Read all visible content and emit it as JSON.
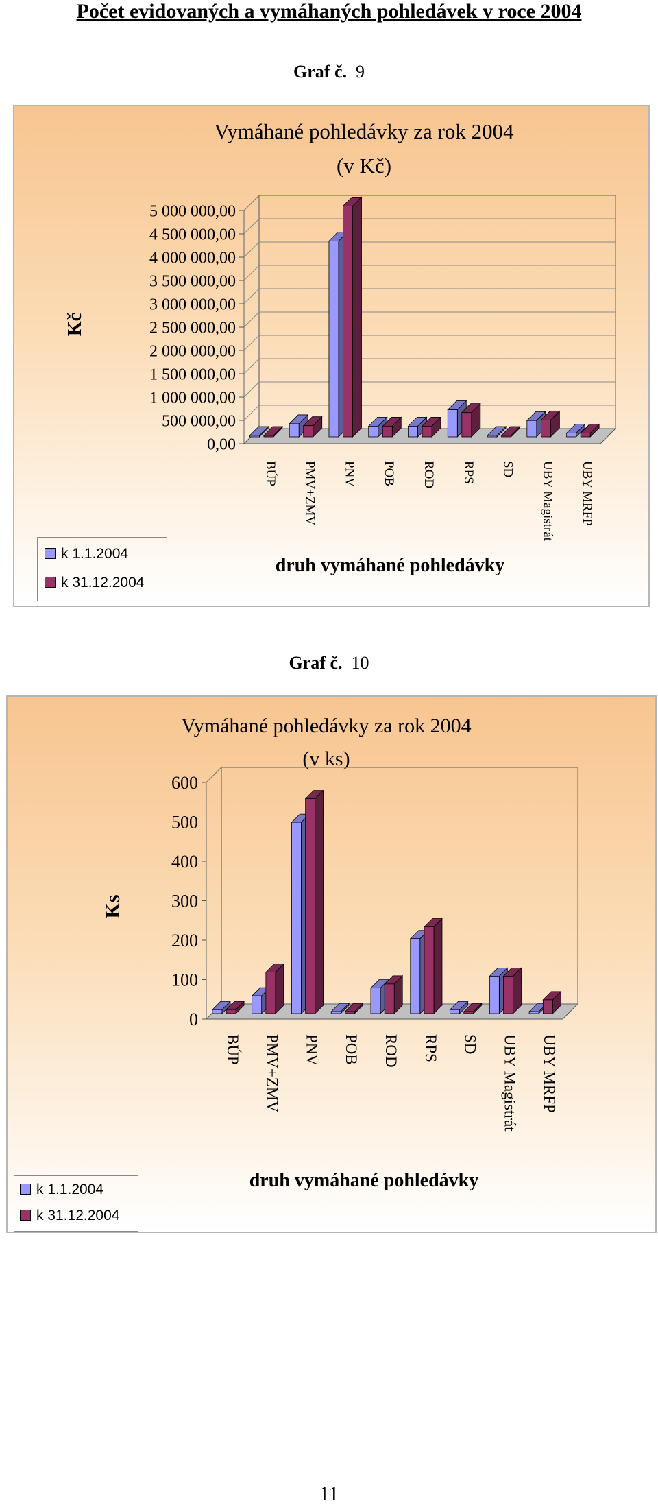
{
  "page": {
    "title": "Počet evidovaných a vymáhaných pohledávek v roce 2004",
    "page_number": "11"
  },
  "graphs": [
    {
      "label": "Graf č.",
      "number": "9"
    },
    {
      "label": "Graf č.",
      "number": "10"
    }
  ],
  "colors": {
    "series1": "#9999ff",
    "series2": "#993366"
  },
  "chart_data": [
    {
      "type": "bar",
      "title": "Vymáhané pohledávky za rok 2004",
      "subtitle": "(v Kč)",
      "xlabel": "druh  vymáhané pohledávky",
      "ylabel": "Kč",
      "ylim": [
        0,
        5000000
      ],
      "yticks": [
        "5 000 000,00",
        "4 500 000,00",
        "4 000 000,00",
        "3 500 000,00",
        "3 000 000,00",
        "2 500 000,00",
        "2 000 000,00",
        "1 500 000,00",
        "1 000 000,00",
        "500 000,00",
        "0,00"
      ],
      "categories": [
        "BÚP",
        "PMV+ZMV",
        "PNV",
        "POB",
        "ROD",
        "RPS",
        "SD",
        "UBY Magistrát",
        "UBY MRFP"
      ],
      "series": [
        {
          "name": "k 1.1.2004",
          "values": [
            20000,
            280000,
            4200000,
            230000,
            230000,
            580000,
            20000,
            350000,
            80000
          ]
        },
        {
          "name": "k 31.12.2004",
          "values": [
            20000,
            240000,
            4950000,
            230000,
            230000,
            520000,
            20000,
            360000,
            80000
          ]
        }
      ],
      "grid": true,
      "legend": "bottom-left"
    },
    {
      "type": "bar",
      "title": "Vymáhané pohledávky za rok 2004",
      "subtitle": "(v ks)",
      "xlabel": "druh vymáhané pohledávky",
      "ylabel": "Ks",
      "ylim": [
        0,
        600
      ],
      "yticks": [
        "600",
        "500",
        "400",
        "300",
        "200",
        "100",
        "0"
      ],
      "categories": [
        "BÚP",
        "PMV+ZMV",
        "PNV",
        "POB",
        "ROD",
        "RPS",
        "SD",
        "UBY Magistrát",
        "UBY MRFP"
      ],
      "series": [
        {
          "name": "k 1.1.2004",
          "values": [
            10,
            45,
            485,
            5,
            65,
            190,
            10,
            95,
            5
          ]
        },
        {
          "name": "k 31.12.2004",
          "values": [
            10,
            105,
            545,
            5,
            75,
            220,
            5,
            95,
            35
          ]
        }
      ],
      "grid": false,
      "legend": "bottom-left"
    }
  ]
}
